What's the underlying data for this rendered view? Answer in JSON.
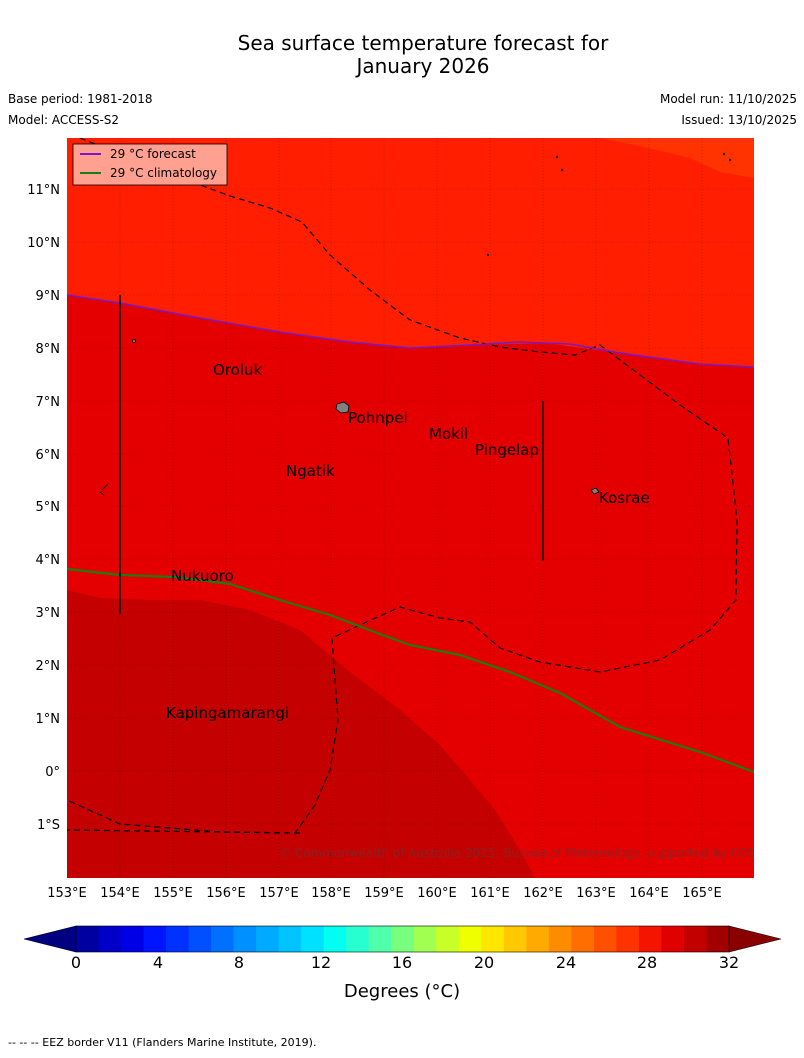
{
  "title_line1": "Sea surface temperature forecast for",
  "title_line2": "January 2026",
  "base_period": "Base period: 1981-2018",
  "model": "Model: ACCESS-S2",
  "model_run": "Model run: 11/10/2025",
  "issued": "Issued: 13/10/2025",
  "legend": {
    "forecast_label": "29 °C  forecast",
    "forecast_color": "#7a18c8",
    "climatology_label": "29 °C  climatology",
    "climatology_color": "#1e7a12"
  },
  "map_data": {
    "lon_range": [
      153,
      166
    ],
    "lat_range": [
      -2,
      12
    ],
    "lon_ticks": [
      "153°E",
      "154°E",
      "155°E",
      "156°E",
      "157°E",
      "158°E",
      "159°E",
      "160°E",
      "161°E",
      "162°E",
      "163°E",
      "164°E",
      "165°E"
    ],
    "lat_ticks": [
      "11°N",
      "10°N",
      "9°N",
      "8°N",
      "7°N",
      "6°N",
      "5°N",
      "4°N",
      "3°N",
      "2°N",
      "1°N",
      "0°",
      "1°S"
    ],
    "places": [
      {
        "name": "Oroluk",
        "lon": 155.8,
        "lat": 7.5
      },
      {
        "name": "Pohnpei",
        "lon": 158.3,
        "lat": 6.8
      },
      {
        "name": "Mokil",
        "lon": 159.8,
        "lat": 6.3
      },
      {
        "name": "Pingelap",
        "lon": 160.7,
        "lat": 6.0
      },
      {
        "name": "Ngatik",
        "lon": 157.2,
        "lat": 5.6
      },
      {
        "name": "Kosrae",
        "lon": 163.0,
        "lat": 5.1
      },
      {
        "name": "Nukuoro",
        "lon": 155.0,
        "lat": 3.6
      },
      {
        "name": "Kapingamarangi",
        "lon": 154.9,
        "lat": 1.0
      }
    ]
  },
  "copyright": "© Commonwealth of Australia 2025, Bureau of Meteorology, supported by COSPPac",
  "colorbar": {
    "colors": [
      "#0000a0",
      "#0000c8",
      "#0000e6",
      "#0014ff",
      "#0032ff",
      "#0050ff",
      "#0070ff",
      "#0090ff",
      "#00aaff",
      "#00c4ff",
      "#00e0ff",
      "#00fff0",
      "#28ffd0",
      "#50ffaa",
      "#78ff80",
      "#a0ff50",
      "#c8ff28",
      "#f0ff00",
      "#ffe600",
      "#ffc800",
      "#ffaa00",
      "#ff8c00",
      "#ff6e00",
      "#ff5000",
      "#ff3200",
      "#f41400",
      "#e00000",
      "#c20000",
      "#a00000"
    ],
    "under_color": "#000080",
    "over_color": "#8a0000",
    "tick_labels": [
      "0",
      "4",
      "8",
      "12",
      "16",
      "20",
      "24",
      "28",
      "32"
    ],
    "label": "Degrees (°C)"
  },
  "footer": "-- -- -- EEZ border V11 (Flanders Marine Institute, 2019)."
}
